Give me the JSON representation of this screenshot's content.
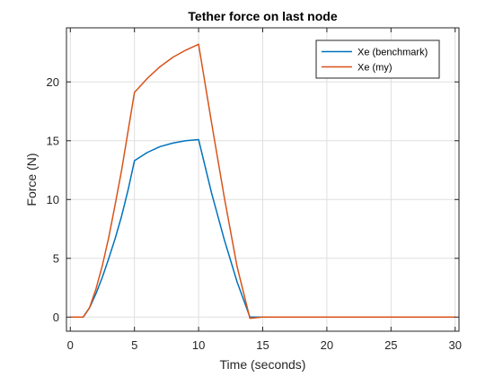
{
  "chart_data": {
    "type": "line",
    "title": "Tether force on last node",
    "xlabel": "Time (seconds)",
    "ylabel": "Force (N)",
    "xlim": [
      -0.3,
      30.3
    ],
    "ylim": [
      -1.2,
      24.6
    ],
    "xticks": [
      0,
      5,
      10,
      15,
      20,
      25,
      30
    ],
    "yticks": [
      0,
      5,
      10,
      15,
      20
    ],
    "grid": true,
    "legend_position": "top-right",
    "series": [
      {
        "name": "Xe (benchmark)",
        "color": "#0072BD",
        "x": [
          0,
          1,
          1.5,
          2,
          2.5,
          3,
          3.5,
          4,
          4.5,
          5,
          6,
          7,
          8,
          9,
          10,
          11,
          12,
          13,
          14,
          15,
          30
        ],
        "y": [
          0,
          0,
          0.8,
          2.0,
          3.4,
          5.0,
          6.7,
          8.6,
          10.8,
          13.3,
          14.0,
          14.5,
          14.8,
          15.0,
          15.1,
          10.6,
          6.6,
          3.0,
          0,
          0,
          0
        ]
      },
      {
        "name": "Xe (my)",
        "color": "#D95319",
        "x": [
          0,
          1,
          1.5,
          2,
          2.5,
          3,
          3.5,
          4,
          4.5,
          5,
          6,
          7,
          8,
          9,
          10,
          11,
          12,
          13,
          14,
          15,
          30
        ],
        "y": [
          0,
          0,
          0.8,
          2.4,
          4.4,
          6.8,
          9.6,
          12.5,
          15.8,
          19.1,
          20.3,
          21.3,
          22.1,
          22.7,
          23.2,
          16.6,
          10.2,
          4.3,
          -0.1,
          0,
          0
        ]
      }
    ]
  }
}
